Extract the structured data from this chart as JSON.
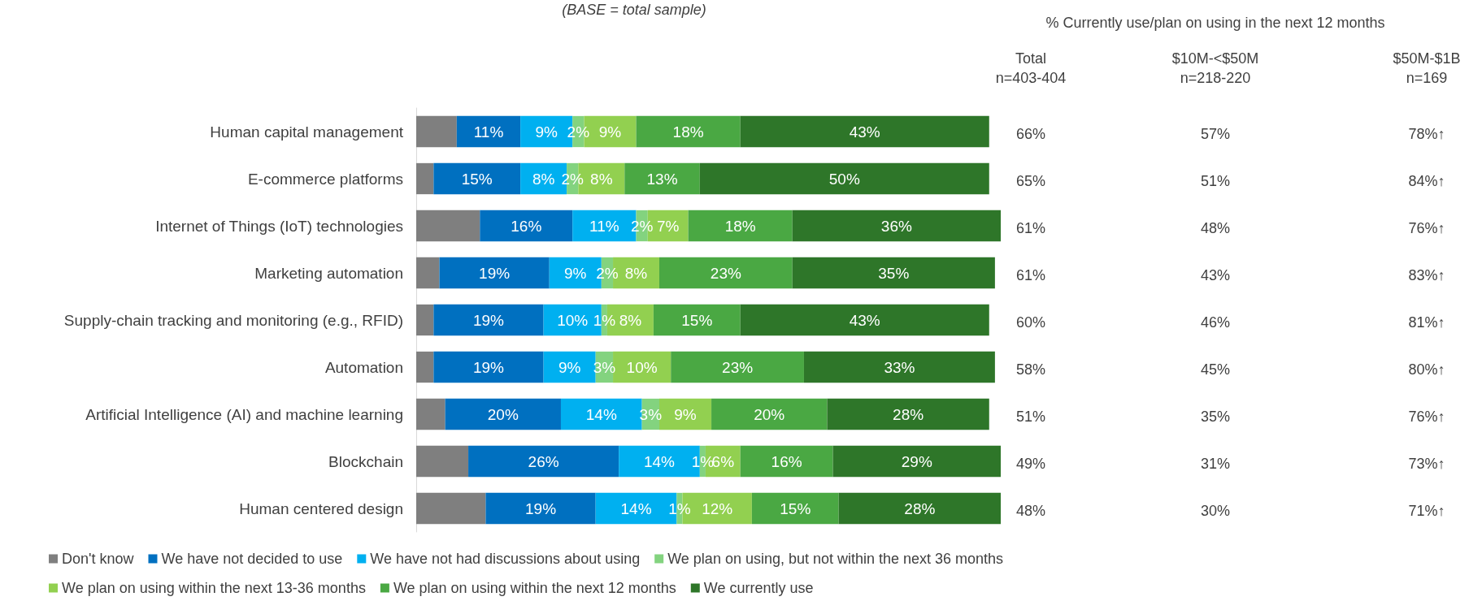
{
  "chart_data": {
    "type": "bar",
    "orientation": "horizontal",
    "stacked": true,
    "legend": "bottom",
    "grid": false,
    "categories": [
      "Human capital management",
      "E-commerce platforms",
      "Internet of Things (IoT) technologies",
      "Marketing automation",
      "Supply-chain tracking and monitoring (e.g., RFID)",
      "Automation",
      "Artificial Intelligence (AI) and machine learning",
      "Blockchain",
      "Human centered design"
    ],
    "series": [
      {
        "name": "Don't know",
        "color": "#7f7f7f",
        "values": [
          7,
          3,
          11,
          4,
          3,
          3,
          5,
          9,
          12
        ]
      },
      {
        "name": "We have not decided to use",
        "color": "#0070c0",
        "values": [
          11,
          15,
          16,
          19,
          19,
          19,
          20,
          26,
          19
        ],
        "value_labels": [
          "11%",
          "15%",
          "16%",
          "19%",
          "19%",
          "19%",
          "20%",
          "26%",
          "19%"
        ]
      },
      {
        "name": "We have not had discussions about using",
        "color": "#00b0f0",
        "values": [
          9,
          8,
          11,
          9,
          10,
          9,
          14,
          14,
          14
        ],
        "value_labels": [
          "9%",
          "8%",
          "11%",
          "9%",
          "10%",
          "9%",
          "14%",
          "14%",
          "14%"
        ]
      },
      {
        "name": "We plan on using, but not within the next 36 months",
        "color": "#83d37f",
        "values": [
          2,
          2,
          2,
          2,
          1,
          3,
          3,
          1,
          1
        ],
        "value_labels": [
          "2%",
          "2%",
          "2%",
          "2%",
          "1%",
          "3%",
          "3%",
          "1%",
          "1%"
        ]
      },
      {
        "name": "We plan on using within the next 13-36 months",
        "color": "#92d050",
        "values": [
          9,
          8,
          7,
          8,
          8,
          10,
          9,
          6,
          12
        ],
        "value_labels": [
          "9%",
          "8%",
          "7%",
          "8%",
          "8%",
          "10%",
          "9%",
          "6%",
          "12%"
        ]
      },
      {
        "name": "We plan on using within the next 12 months",
        "color": "#4aa843",
        "values": [
          18,
          13,
          18,
          23,
          15,
          23,
          20,
          16,
          15
        ],
        "value_labels": [
          "18%",
          "13%",
          "18%",
          "23%",
          "15%",
          "23%",
          "20%",
          "16%",
          "15%"
        ]
      },
      {
        "name": "We currently use",
        "color": "#2e7629",
        "values": [
          43,
          50,
          36,
          35,
          43,
          33,
          28,
          29,
          28
        ],
        "value_labels": [
          "43%",
          "50%",
          "36%",
          "35%",
          "43%",
          "33%",
          "28%",
          "29%",
          "28%"
        ]
      }
    ],
    "annotations": [
      "(BASE = total sample)",
      "% Currently use/plan on using in the next 12 months",
      "Total\nn=403-404",
      "$10M-<$50M\nn=218-220",
      "$50M-$1B\nn=169",
      "66%",
      "57%",
      "78%↑",
      "65%",
      "51%",
      "84%↑",
      "61%",
      "48%",
      "76%↑",
      "61%",
      "43%",
      "83%↑",
      "60%",
      "46%",
      "81%↑",
      "58%",
      "45%",
      "80%↑",
      "51%",
      "35%",
      "76%↑",
      "49%",
      "31%",
      "73%↑",
      "48%",
      "30%",
      "71%↑"
    ]
  }
}
